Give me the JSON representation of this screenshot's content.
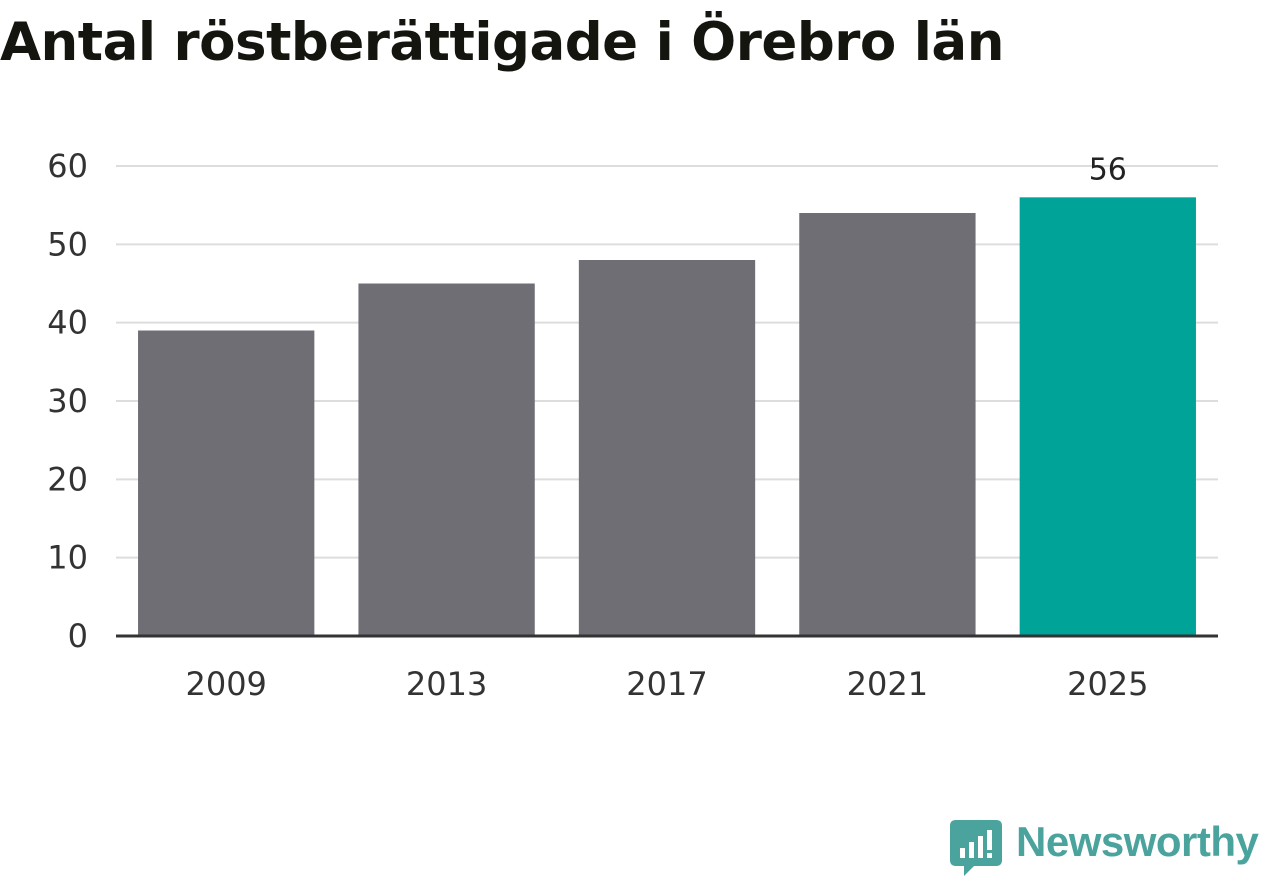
{
  "title": "Antal röstberättigade i Örebro län",
  "brand": {
    "name": "Newsworthy"
  },
  "colors": {
    "default_bar": "#6f6e75",
    "highlight_bar": "#00a398",
    "grid": "#dddddd",
    "axis": "#333333",
    "brand": "#4aa39c"
  },
  "chart_data": {
    "type": "bar",
    "title": "Antal röstberättigade i Örebro län",
    "xlabel": "",
    "ylabel": "",
    "categories": [
      "2009",
      "2013",
      "2017",
      "2021",
      "2025"
    ],
    "values": [
      39,
      45,
      48,
      54,
      56
    ],
    "highlight_index": 4,
    "data_labels": [
      "",
      "",
      "",
      "",
      "56"
    ],
    "ylim": [
      0,
      60
    ],
    "yticks": [
      0,
      10,
      20,
      30,
      40,
      50,
      60
    ],
    "grid": true,
    "legend": "none"
  }
}
